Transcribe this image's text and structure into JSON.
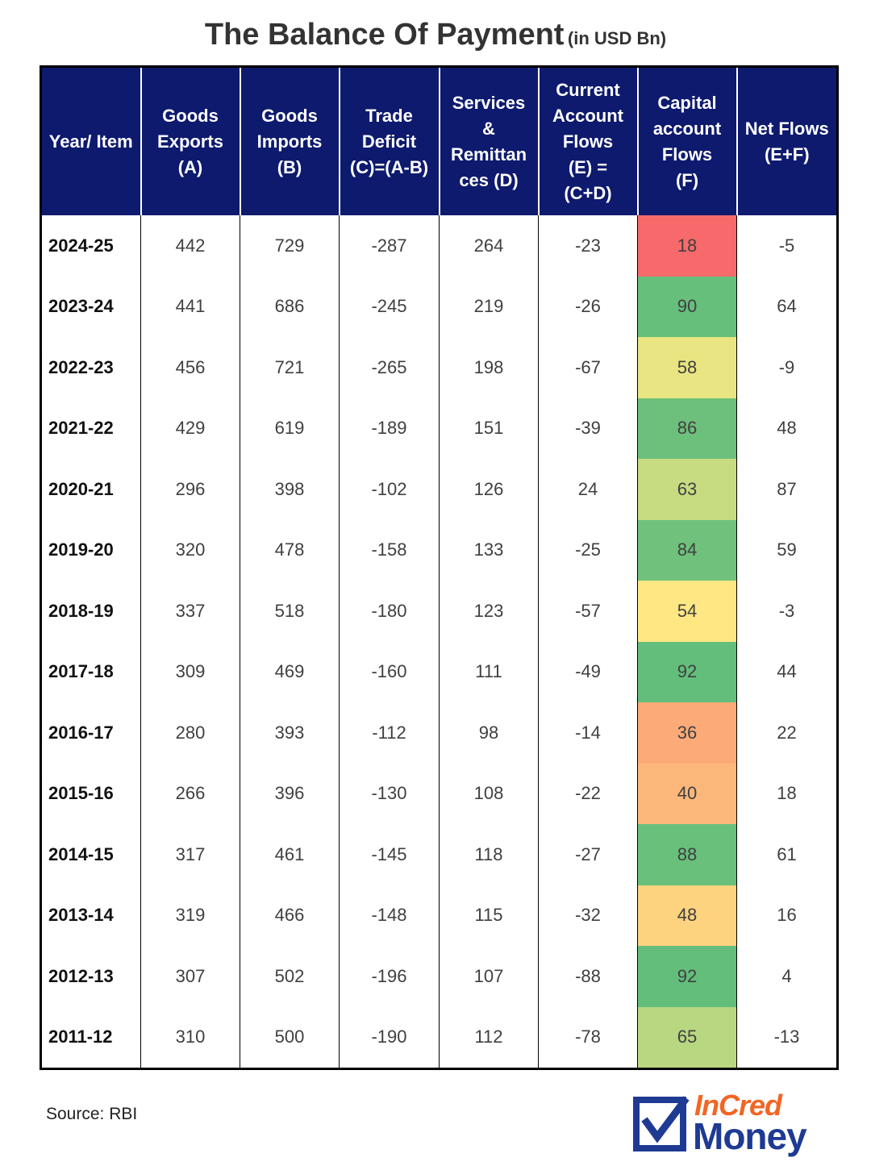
{
  "title": "The Balance Of Payment",
  "subtitle": "(in USD Bn)",
  "source": "Source: RBI",
  "brand": {
    "line1": "InCred",
    "line2": "Money",
    "blue": "#1f3a93",
    "orange": "#f26522"
  },
  "colors": {
    "header_bg": "#0e1a6e"
  },
  "chart_data": {
    "type": "table",
    "title": "The Balance Of Payment (in USD Bn)",
    "columns": [
      "Year/ Item",
      "Goods\nExports\n(A)",
      "Goods\nImports\n(B)",
      "Trade\nDeficit\n(C)=(A-B)",
      "Services\n&\nRemittan\nces (D)",
      "Current\nAccount\nFlows\n(E) =\n(C+D)",
      "Capital\naccount\nFlows\n(F)",
      "Net Flows\n(E+F)"
    ],
    "rows": [
      [
        "2024-25",
        "442",
        "729",
        "-287",
        "264",
        "-23",
        "18",
        "-5"
      ],
      [
        "2023-24",
        "441",
        "686",
        "-245",
        "219",
        "-26",
        "90",
        "64"
      ],
      [
        "2022-23",
        "456",
        "721",
        "-265",
        "198",
        "-67",
        "58",
        "-9"
      ],
      [
        "2021-22",
        "429",
        "619",
        "-189",
        "151",
        "-39",
        "86",
        "48"
      ],
      [
        "2020-21",
        "296",
        "398",
        "-102",
        "126",
        "24",
        "63",
        "87"
      ],
      [
        "2019-20",
        "320",
        "478",
        "-158",
        "133",
        "-25",
        "84",
        "59"
      ],
      [
        "2018-19",
        "337",
        "518",
        "-180",
        "123",
        "-57",
        "54",
        "-3"
      ],
      [
        "2017-18",
        "309",
        "469",
        "-160",
        "111",
        "-49",
        "92",
        "44"
      ],
      [
        "2016-17",
        "280",
        "393",
        "-112",
        "98",
        "-14",
        "36",
        "22"
      ],
      [
        "2015-16",
        "266",
        "396",
        "-130",
        "108",
        "-22",
        "40",
        "18"
      ],
      [
        "2014-15",
        "317",
        "461",
        "-145",
        "118",
        "-27",
        "88",
        "61"
      ],
      [
        "2013-14",
        "319",
        "466",
        "-148",
        "115",
        "-32",
        "48",
        "16"
      ],
      [
        "2012-13",
        "307",
        "502",
        "-196",
        "107",
        "-88",
        "92",
        "4"
      ],
      [
        "2011-12",
        "310",
        "500",
        "-190",
        "112",
        "-78",
        "65",
        "-13"
      ]
    ],
    "heat_column": 6,
    "heat_colors": [
      "#f8696b",
      "#fbac78",
      "#ffeb84",
      "#7ec57c",
      "#63be7b"
    ]
  }
}
